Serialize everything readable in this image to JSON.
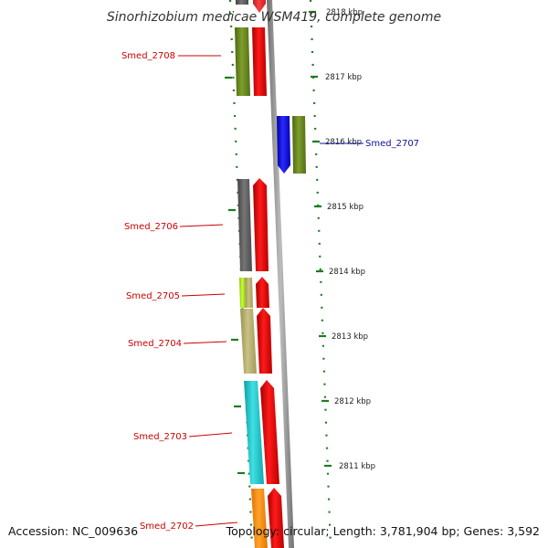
{
  "title": "Sinorhizobium medicae WSM419, complete genome",
  "accession": "Accession: NC_009636",
  "topology": "Topology: circular; Length: 3,781,904 bp; Genes: 3,592",
  "ruler": {
    "ticks": [
      {
        "label": "2818 kbp"
      },
      {
        "label": "2817 kbp"
      },
      {
        "label": "2816 kbp"
      },
      {
        "label": "2815 kbp"
      },
      {
        "label": "2814 kbp"
      },
      {
        "label": "2813 kbp"
      },
      {
        "label": "2812 kbp"
      },
      {
        "label": "2811 kbp"
      }
    ]
  },
  "genes": [
    {
      "label": "Smed_2708",
      "color": "#cc0000"
    },
    {
      "label": "Smed_2707",
      "color": "#1010a0"
    },
    {
      "label": "Smed_2706",
      "color": "#cc0000"
    },
    {
      "label": "Smed_2705",
      "color": "#cc0000"
    },
    {
      "label": "Smed_2704",
      "color": "#cc0000"
    },
    {
      "label": "Smed_2703",
      "color": "#cc0000"
    },
    {
      "label": "Smed_2702",
      "color": "#cc0000"
    }
  ],
  "colors": {
    "backbone": "#8c8c8c",
    "cds": "#ff0000",
    "ruler": "#1e7d1e",
    "reverse_cds": "#0000ee",
    "cog_olive": "#6b8a22",
    "cog_grey": "#606060",
    "cog_lime": "#a6e31a",
    "cog_khaki": "#b5ae6a",
    "cog_cyan": "#20c4c8",
    "cog_orange": "#ff8c00"
  }
}
